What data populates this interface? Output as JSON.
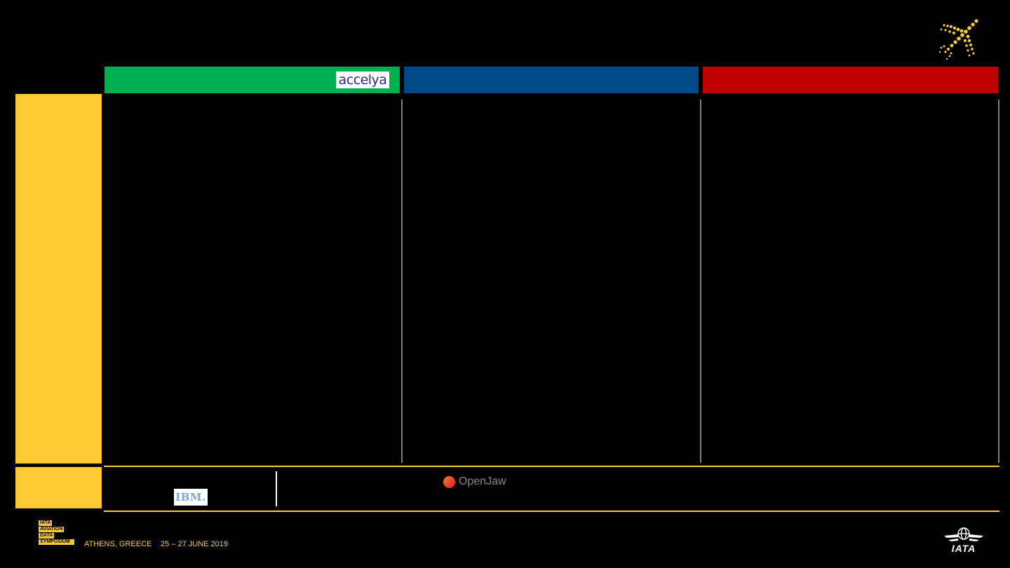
{
  "header": {
    "columns": [
      {
        "color": "#00b050",
        "logo": "accelya"
      },
      {
        "color": "#004a8a"
      },
      {
        "color": "#c00000"
      }
    ]
  },
  "partners": {
    "ibm_label": "IBM.",
    "openjaw_label": "OpenJaw"
  },
  "footer": {
    "event_lines": [
      "IATA",
      "AVIATION",
      "DATA",
      "SYMPOSIUM"
    ],
    "location": "ATHENS, GREECE",
    "dates": "25 – 27 JUNE 2019",
    "org_logo": "IATA"
  },
  "colors": {
    "accent": "#fccb34",
    "background": "#000000",
    "divider": "#7f7f7f"
  },
  "icons": [
    "plane-icon",
    "iata-globe-icon"
  ]
}
